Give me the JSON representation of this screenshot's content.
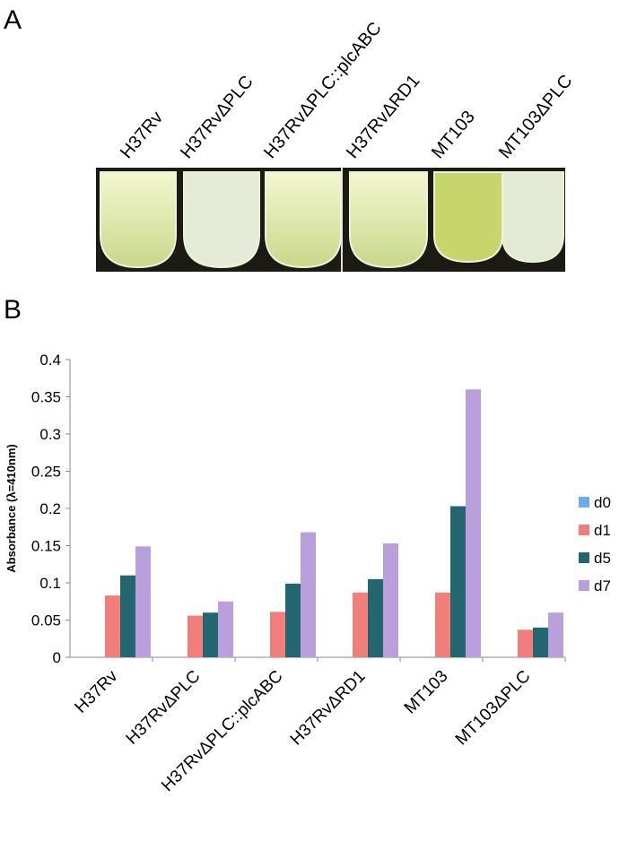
{
  "panel_a": {
    "label": "A",
    "tube_labels": [
      "H37Rv",
      "H37RvΔPLC",
      "H37RvΔPLC::plcABC",
      "H37RvΔRD1",
      "MT103",
      "MT103ΔPLC"
    ]
  },
  "panel_b": {
    "label": "B"
  },
  "chart_data": {
    "type": "bar",
    "y_label": "Absorbance (λ=410nm)",
    "categories": [
      "H37Rv",
      "H37RvΔPLC",
      "H37RvΔPLC::plcABC",
      "H37RvΔRD1",
      "MT103",
      "MT103ΔPLC"
    ],
    "series": [
      {
        "name": "d0",
        "color": "#6aaee8",
        "values": [
          0,
          0,
          0,
          0,
          0,
          0
        ]
      },
      {
        "name": "d1",
        "color": "#f07e7a",
        "values": [
          0.083,
          0.056,
          0.061,
          0.087,
          0.087,
          0.037
        ]
      },
      {
        "name": "d5",
        "color": "#236670",
        "values": [
          0.11,
          0.06,
          0.099,
          0.105,
          0.203,
          0.04
        ]
      },
      {
        "name": "d7",
        "color": "#b9a0dc",
        "values": [
          0.149,
          0.075,
          0.168,
          0.153,
          0.36,
          0.06
        ]
      }
    ],
    "ylim": [
      0,
      0.4
    ],
    "yticks": [
      0,
      0.05,
      0.1,
      0.15,
      0.2,
      0.25,
      0.3,
      0.35,
      0.4
    ],
    "legend": "right"
  }
}
